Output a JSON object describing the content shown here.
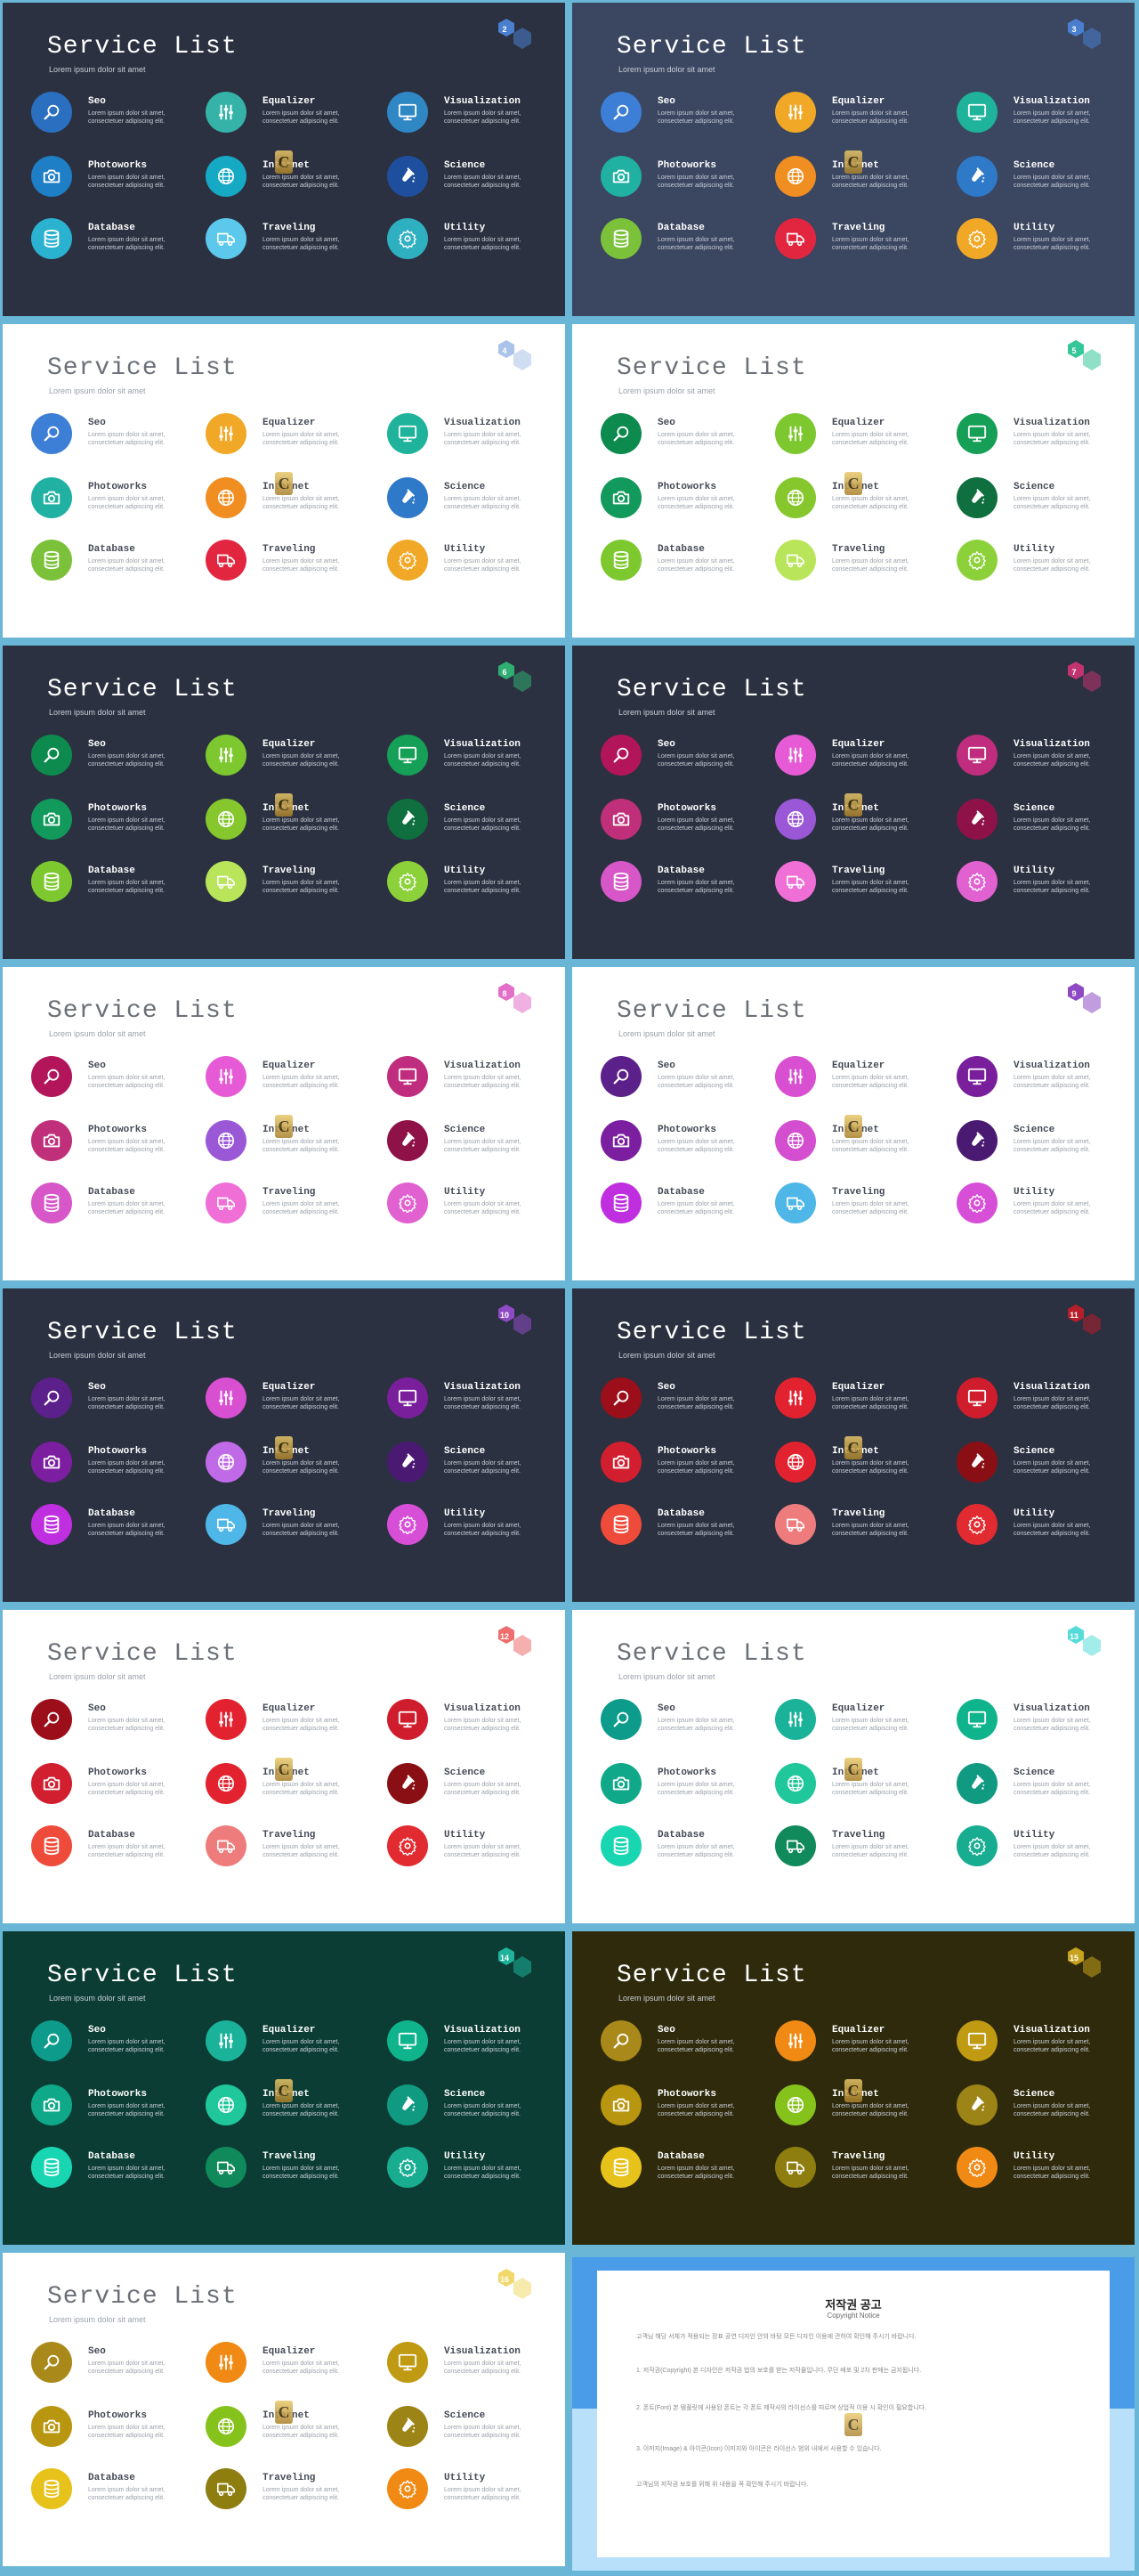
{
  "theme": {
    "dark_bg": "#2b3140",
    "navy_bg": "#3b4660",
    "light_bg": "#ffffff",
    "green_bg": "#0b3d34",
    "olive_bg": "#2e2a0b",
    "border": "#6ab6d6"
  },
  "common": {
    "title": "Service List",
    "subtitle": "Lorem ipsum dolor sit amet",
    "item_desc": "Lorem ipsum dolor sit amet, consectetuer adipiscing elit.",
    "logo_letter": "C"
  },
  "items": [
    {
      "key": "seo",
      "name": "Seo",
      "icon": "search-icon"
    },
    {
      "key": "equalizer",
      "name": "Equalizer",
      "icon": "equalizer-icon"
    },
    {
      "key": "visualization",
      "name": "Visualization",
      "icon": "monitor-icon"
    },
    {
      "key": "photoworks",
      "name": "Photoworks",
      "icon": "camera-icon"
    },
    {
      "key": "internet",
      "name": "Internet",
      "icon": "globe-icon"
    },
    {
      "key": "science",
      "name": "Science",
      "icon": "flask-icon"
    },
    {
      "key": "database",
      "name": "Database",
      "icon": "database-icon"
    },
    {
      "key": "traveling",
      "name": "Traveling",
      "icon": "truck-icon"
    },
    {
      "key": "utility",
      "name": "Utility",
      "icon": "gear-icon"
    }
  ],
  "slides": [
    {
      "number": "2",
      "bg": "#2b3140",
      "dark": true,
      "badge": "#4a7fd0",
      "colors": [
        "#2b6fc0",
        "#35b3a9",
        "#2f87c4",
        "#1e7fc7",
        "#16a9c4",
        "#1e4f9e",
        "#2ab2d0",
        "#5cc8ec",
        "#2fb0c0"
      ]
    },
    {
      "number": "3",
      "bg": "#3b4660",
      "dark": true,
      "badge": "#4a7fd0",
      "colors": [
        "#3d7fd6",
        "#f0a826",
        "#1fb39b",
        "#20b1a2",
        "#f08e22",
        "#2f79c9",
        "#7bc13a",
        "#e2263f",
        "#f0a826"
      ]
    },
    {
      "number": "4",
      "bg": "#ffffff",
      "dark": false,
      "badge": "#aac3e8",
      "colors": [
        "#3d7fd6",
        "#f0a826",
        "#1fb39b",
        "#20b1a2",
        "#f08e22",
        "#2f79c9",
        "#7bc13a",
        "#e2263f",
        "#f0a826"
      ]
    },
    {
      "number": "5",
      "bg": "#ffffff",
      "dark": false,
      "badge": "#35c79a",
      "colors": [
        "#0d8a4e",
        "#7cc82e",
        "#169f56",
        "#12995c",
        "#86c72e",
        "#0f6f3e",
        "#7cc82e",
        "#b8e55a",
        "#8cd13a"
      ]
    },
    {
      "number": "6",
      "bg": "#2b3140",
      "dark": true,
      "badge": "#2fae72",
      "colors": [
        "#0d8a4e",
        "#7cc82e",
        "#169f56",
        "#12995c",
        "#86c72e",
        "#0f6f3e",
        "#7cc82e",
        "#b8e55a",
        "#8cd13a"
      ]
    },
    {
      "number": "7",
      "bg": "#2b3140",
      "dark": true,
      "badge": "#c2336f",
      "colors": [
        "#b2155a",
        "#e65bd5",
        "#c02d7e",
        "#c0307a",
        "#9a58d6",
        "#8e1248",
        "#d756c8",
        "#ef6fd6",
        "#e061cf"
      ]
    },
    {
      "number": "8",
      "bg": "#ffffff",
      "dark": false,
      "badge": "#e36fc8",
      "colors": [
        "#b2155a",
        "#e65bd5",
        "#c02d7e",
        "#c0307a",
        "#9a58d6",
        "#8e1248",
        "#d756c8",
        "#ef6fd6",
        "#e061cf"
      ]
    },
    {
      "number": "9",
      "bg": "#ffffff",
      "dark": false,
      "badge": "#8e4ac4",
      "colors": [
        "#5b2089",
        "#d84fd2",
        "#7a1f9c",
        "#7b1fa0",
        "#d44fd0",
        "#4a1a72",
        "#bf2fe0",
        "#4fb7e8",
        "#d74fd7"
      ]
    },
    {
      "number": "10",
      "bg": "#2b3140",
      "dark": true,
      "badge": "#8e4ac4",
      "colors": [
        "#5b2089",
        "#d84fd2",
        "#7a1f9c",
        "#7b1fa0",
        "#c06ae8",
        "#4a1a72",
        "#bf2fe0",
        "#4fb7e8",
        "#d74fd7"
      ]
    },
    {
      "number": "11",
      "bg": "#2b3140",
      "dark": true,
      "badge": "#b51e2a",
      "colors": [
        "#9c0e19",
        "#e2232f",
        "#cf1d2d",
        "#d11f2f",
        "#e2232f",
        "#8a0f14",
        "#ef4b3a",
        "#ee7c7c",
        "#e22b30"
      ]
    },
    {
      "number": "12",
      "bg": "#ffffff",
      "dark": false,
      "badge": "#ee6e6e",
      "colors": [
        "#9c0e19",
        "#e2232f",
        "#cf1d2d",
        "#d11f2f",
        "#e2232f",
        "#8a0f14",
        "#ef4b3a",
        "#ee7c7c",
        "#e22b30"
      ]
    },
    {
      "number": "13",
      "bg": "#ffffff",
      "dark": false,
      "badge": "#56dcd8",
      "colors": [
        "#0d9c8c",
        "#1ab39a",
        "#10b48c",
        "#0fa98a",
        "#1fc79a",
        "#119a82",
        "#19d6b2",
        "#108a5a",
        "#18ad91"
      ]
    },
    {
      "number": "14",
      "bg": "#0b3d34",
      "dark": true,
      "badge": "#1fb39b",
      "colors": [
        "#0d9c8c",
        "#1ab39a",
        "#10b48c",
        "#0fa98a",
        "#1fc79a",
        "#119a82",
        "#19d6b2",
        "#108a5a",
        "#18ad91"
      ]
    },
    {
      "number": "15",
      "bg": "#2e2a0b",
      "dark": true,
      "badge": "#c7a21e",
      "colors": [
        "#a8891a",
        "#f08a14",
        "#bf9a12",
        "#b8960f",
        "#86c21c",
        "#9c8416",
        "#e6c21a",
        "#8e7e10",
        "#f08a14"
      ]
    },
    {
      "number": "16",
      "bg": "#ffffff",
      "dark": false,
      "badge": "#f0d96a",
      "colors": [
        "#a8891a",
        "#f08a14",
        "#bf9a12",
        "#b8960f",
        "#86c21c",
        "#9c8416",
        "#e6c21a",
        "#8e7e10",
        "#f08a14"
      ]
    }
  ],
  "copyright": {
    "title": "저작권 공고",
    "subtitle": "Copyright Notice",
    "paragraphs": [
      "고객님 해당 서체가 적용되는 장표 공연 디자인 안의 바탕 모든 디자인 이용에 관하여 확인해 주시기 바랍니다.",
      "1. 저작권(Copyright) 본 디자인은 저작권 법의 보호를 받는 저작물입니다. 무단 배포 및 2차 판매는 금지됩니다.",
      "2. 폰트(Font) 본 템플릿에 사용된 폰트는 각 폰트 제작사의 라이선스를 따르며 상업적 이용 시 확인이 필요합니다.",
      "3. 이미지(Image) & 아이콘(Icon) 이미지와 아이콘은 라이선스 범위 내에서 사용할 수 있습니다.",
      "고객님의 저작권 보호를 위해 위 내용을 꼭 확인해 주시기 바랍니다."
    ]
  }
}
